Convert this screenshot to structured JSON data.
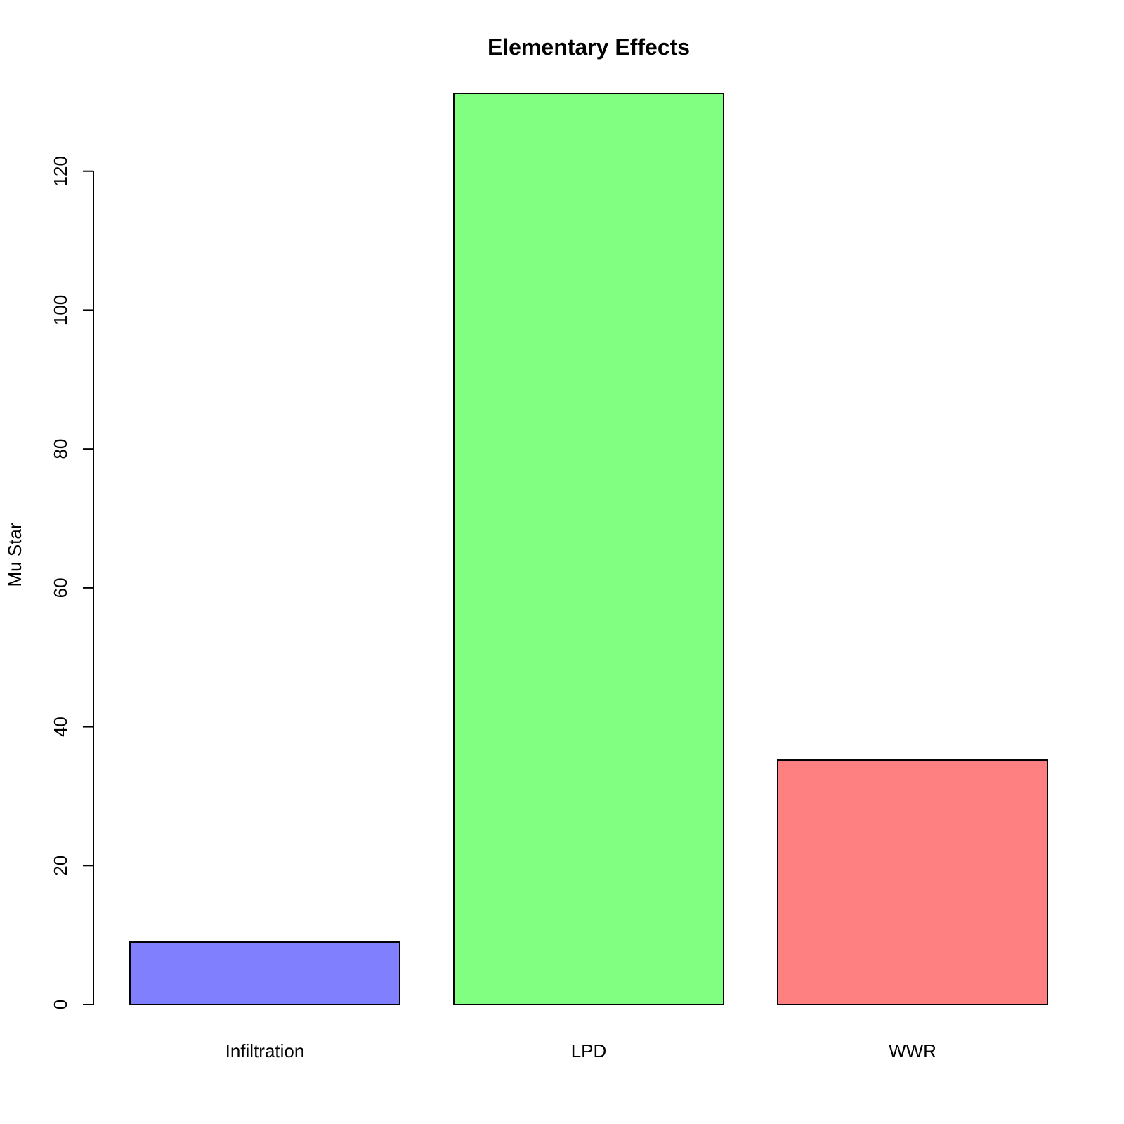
{
  "chart_data": {
    "type": "bar",
    "title": "Elementary Effects",
    "xlabel": "",
    "ylabel": "Mu Star",
    "categories": [
      "Infiltration",
      "LPD",
      "WWR"
    ],
    "values": [
      9.0,
      131.2,
      35.2
    ],
    "colors": [
      "#8080ff",
      "#80ff80",
      "#ff8080"
    ],
    "ylim": [
      0,
      131.2
    ],
    "yticks": [
      0,
      20,
      40,
      60,
      80,
      100,
      120
    ],
    "grid": false,
    "legend": "none"
  }
}
